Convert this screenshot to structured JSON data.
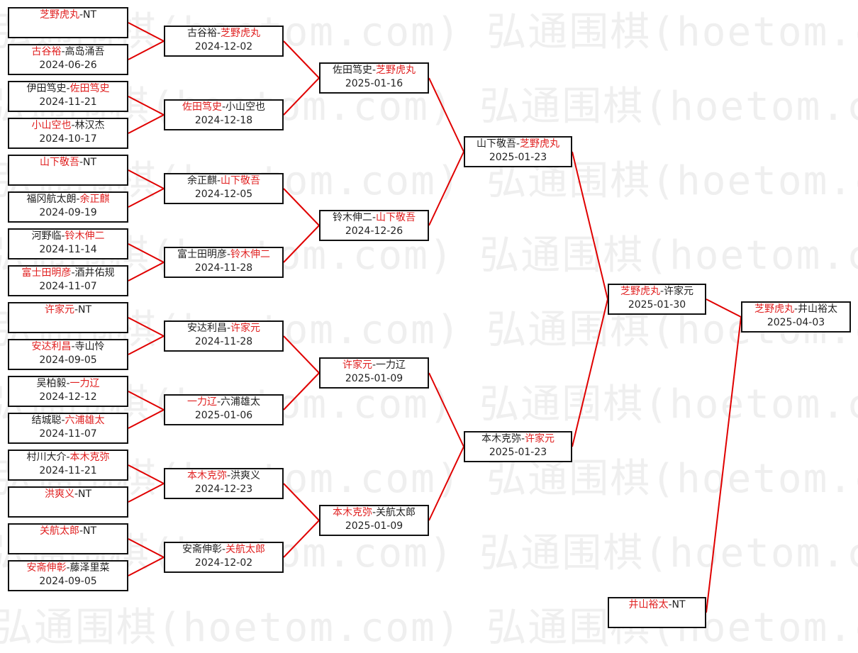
{
  "watermark": "弘通围棋(hoetom.com) 弘通围棋(hoetom.com) 弘通围棋(hoetom.com)",
  "colors": {
    "winner": "#e02020",
    "line": "#e00000",
    "border": "#111111"
  },
  "rounds": [
    [
      {
        "p1": "芝野虎丸",
        "p2": "NT",
        "winner": 1,
        "date": ""
      },
      {
        "p1": "古谷裕",
        "p2": "高岛涌吾",
        "winner": 1,
        "date": "2024-06-26"
      },
      {
        "p1": "伊田笃史",
        "p2": "佐田笃史",
        "winner": 2,
        "date": "2024-11-21"
      },
      {
        "p1": "小山空也",
        "p2": "林汉杰",
        "winner": 1,
        "date": "2024-10-17"
      },
      {
        "p1": "山下敬吾",
        "p2": "NT",
        "winner": 1,
        "date": ""
      },
      {
        "p1": "福冈航太朗",
        "p2": "余正麒",
        "winner": 2,
        "date": "2024-09-19"
      },
      {
        "p1": "河野临",
        "p2": "铃木伸二",
        "winner": 2,
        "date": "2024-11-14"
      },
      {
        "p1": "富士田明彦",
        "p2": "酒井佑规",
        "winner": 1,
        "date": "2024-11-07"
      },
      {
        "p1": "许家元",
        "p2": "NT",
        "winner": 1,
        "date": ""
      },
      {
        "p1": "安达利昌",
        "p2": "寺山怜",
        "winner": 1,
        "date": "2024-09-05"
      },
      {
        "p1": "吴柏毅",
        "p2": "一力辽",
        "winner": 2,
        "date": "2024-12-12"
      },
      {
        "p1": "结城聪",
        "p2": "六浦雄太",
        "winner": 2,
        "date": "2024-11-07"
      },
      {
        "p1": "村川大介",
        "p2": "本木克弥",
        "winner": 2,
        "date": "2024-11-21"
      },
      {
        "p1": "洪爽义",
        "p2": "NT",
        "winner": 1,
        "date": ""
      },
      {
        "p1": "关航太郎",
        "p2": "NT",
        "winner": 1,
        "date": ""
      },
      {
        "p1": "安斋伸彰",
        "p2": "藤泽里菜",
        "winner": 1,
        "date": "2024-09-05"
      }
    ],
    [
      {
        "p1": "古谷裕",
        "p2": "芝野虎丸",
        "winner": 2,
        "date": "2024-12-02"
      },
      {
        "p1": "佐田笃史",
        "p2": "小山空也",
        "winner": 1,
        "date": "2024-12-18"
      },
      {
        "p1": "余正麒",
        "p2": "山下敬吾",
        "winner": 2,
        "date": "2024-12-05"
      },
      {
        "p1": "富士田明彦",
        "p2": "铃木伸二",
        "winner": 2,
        "date": "2024-11-28"
      },
      {
        "p1": "安达利昌",
        "p2": "许家元",
        "winner": 2,
        "date": "2024-11-28"
      },
      {
        "p1": "一力辽",
        "p2": "六浦雄太",
        "winner": 1,
        "date": "2025-01-06"
      },
      {
        "p1": "本木克弥",
        "p2": "洪爽义",
        "winner": 1,
        "date": "2024-12-23"
      },
      {
        "p1": "安斋伸彰",
        "p2": "关航太郎",
        "winner": 2,
        "date": "2024-12-02"
      }
    ],
    [
      {
        "p1": "佐田笃史",
        "p2": "芝野虎丸",
        "winner": 2,
        "date": "2025-01-16"
      },
      {
        "p1": "铃木伸二",
        "p2": "山下敬吾",
        "winner": 2,
        "date": "2024-12-26"
      },
      {
        "p1": "许家元",
        "p2": "一力辽",
        "winner": 1,
        "date": "2025-01-09"
      },
      {
        "p1": "本木克弥",
        "p2": "关航太郎",
        "winner": 1,
        "date": "2025-01-09"
      }
    ],
    [
      {
        "p1": "山下敬吾",
        "p2": "芝野虎丸",
        "winner": 2,
        "date": "2025-01-23"
      },
      {
        "p1": "本木克弥",
        "p2": "许家元",
        "winner": 2,
        "date": "2025-01-23"
      }
    ],
    [
      {
        "p1": "芝野虎丸",
        "p2": "许家元",
        "winner": 1,
        "date": "2025-01-30"
      },
      {
        "p1": "井山裕太",
        "p2": "NT",
        "winner": 1,
        "date": ""
      }
    ],
    [
      {
        "p1": "芝野虎丸",
        "p2": "井山裕太",
        "winner": 1,
        "date": "2025-04-03"
      }
    ]
  ]
}
